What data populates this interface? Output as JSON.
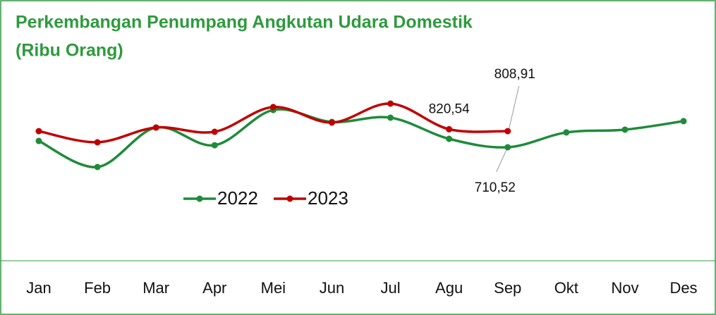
{
  "chart_data": {
    "type": "line",
    "title": "Perkembangan Penumpang Angkutan Udara Domestik",
    "subtitle": "(Ribu Orang)",
    "categories": [
      "Jan",
      "Feb",
      "Mar",
      "Apr",
      "Mei",
      "Jun",
      "Jul",
      "Agu",
      "Sep",
      "Okt",
      "Nov",
      "Des"
    ],
    "series": [
      {
        "name": "2022",
        "color": "#1e8b3a",
        "values": [
          749,
          590,
          831,
          723,
          938,
          865,
          891,
          762,
          710.52,
          801,
          818,
          870
        ],
        "value_labels": [
          null,
          null,
          null,
          null,
          null,
          null,
          null,
          null,
          "710,52",
          null,
          null,
          null
        ]
      },
      {
        "name": "2023",
        "color": "#c00000",
        "values": [
          809,
          741,
          831,
          805,
          956,
          861,
          977,
          820.54,
          808.91,
          null,
          null,
          null
        ],
        "value_labels": [
          null,
          null,
          null,
          null,
          null,
          null,
          null,
          "820,54",
          "808,91",
          null,
          null,
          null
        ]
      }
    ],
    "legend": "center"
  }
}
